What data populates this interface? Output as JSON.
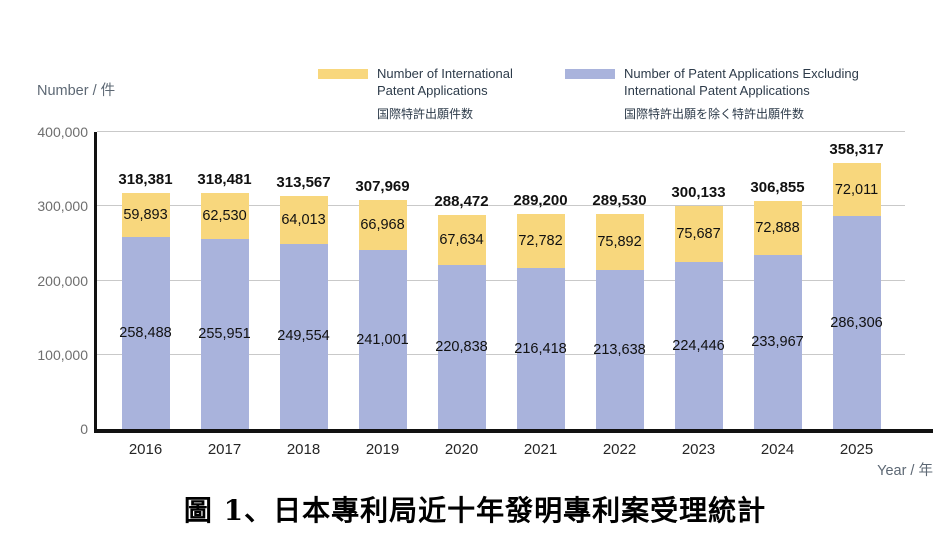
{
  "axes": {
    "y_unit_label": "Number / 件",
    "x_unit_label": "Year / 年"
  },
  "legend": {
    "items": [
      {
        "key": "international",
        "line1": "Number of International",
        "line2": "Patent Applications",
        "ja": "国際特許出願件数",
        "color": "#F8D77D"
      },
      {
        "key": "domestic",
        "line1": "Number of Patent Applications Excluding",
        "line2": "International Patent Applications",
        "ja": "国際特許出願を除く特許出願件数",
        "color": "#A9B3DC"
      }
    ]
  },
  "chart_data": {
    "type": "bar",
    "stacked": true,
    "title": "",
    "xlabel": "Year / 年",
    "ylabel": "Number / 件",
    "categories": [
      "2016",
      "2017",
      "2018",
      "2019",
      "2020",
      "2021",
      "2022",
      "2023",
      "2024",
      "2025"
    ],
    "series": [
      {
        "name": "Number of Patent Applications Excluding International Patent Applications",
        "name_ja": "国際特許出願を除く特許出願件数",
        "color": "#A9B3DC",
        "values": [
          258488,
          255951,
          249554,
          241001,
          220838,
          216418,
          213638,
          224446,
          233967,
          286306
        ]
      },
      {
        "name": "Number of International Patent Applications",
        "name_ja": "国際特許出願件数",
        "color": "#F8D77D",
        "values": [
          59893,
          62530,
          64013,
          66968,
          67634,
          72782,
          75892,
          75687,
          72888,
          72011
        ]
      }
    ],
    "totals": [
      318381,
      318481,
      313567,
      307969,
      288472,
      289200,
      289530,
      300133,
      306855,
      358317
    ],
    "ylim": [
      0,
      400000
    ],
    "yticks": [
      {
        "value": 0,
        "label": "0"
      },
      {
        "value": 100000,
        "label": "100,000"
      },
      {
        "value": 200000,
        "label": "200,000"
      },
      {
        "value": 300000,
        "label": "300,000"
      },
      {
        "value": 400000,
        "label": "400,000"
      }
    ],
    "grid": true,
    "legend_position": "top"
  },
  "caption": "圖 1、日本專利局近十年發明專利案受理統計"
}
